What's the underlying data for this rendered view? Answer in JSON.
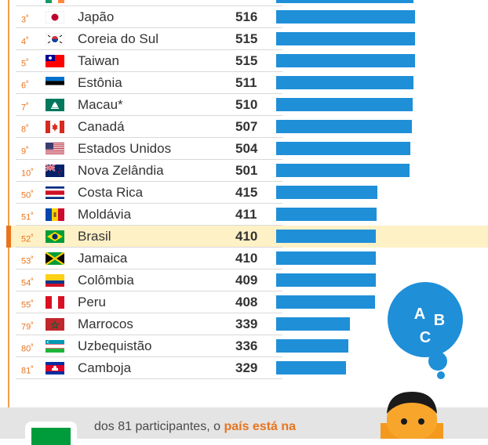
{
  "chart_data": {
    "type": "bar",
    "highlight": "Brasil",
    "rows": [
      {
        "rank": "3",
        "country": "Japão",
        "value": 516,
        "flag": "japan-flag"
      },
      {
        "rank": "4",
        "country": "Coreia do Sul",
        "value": 515,
        "flag": "south-korea-flag"
      },
      {
        "rank": "5",
        "country": "Taiwan",
        "value": 515,
        "flag": "taiwan-flag"
      },
      {
        "rank": "6",
        "country": "Estônia",
        "value": 511,
        "flag": "estonia-flag"
      },
      {
        "rank": "7",
        "country": "Macau*",
        "value": 510,
        "flag": "macau-flag"
      },
      {
        "rank": "8",
        "country": "Canadá",
        "value": 507,
        "flag": "canada-flag"
      },
      {
        "rank": "9",
        "country": "Estados Unidos",
        "value": 504,
        "flag": "usa-flag"
      },
      {
        "rank": "10",
        "country": "Nova Zelândia",
        "value": 501,
        "flag": "new-zealand-flag"
      },
      {
        "rank": "50",
        "country": "Costa Rica",
        "value": 415,
        "flag": "costa-rica-flag"
      },
      {
        "rank": "51",
        "country": "Moldávia",
        "value": 411,
        "flag": "moldova-flag"
      },
      {
        "rank": "52",
        "country": "Brasil",
        "value": 410,
        "flag": "brazil-flag"
      },
      {
        "rank": "53",
        "country": "Jamaica",
        "value": 410,
        "flag": "jamaica-flag"
      },
      {
        "rank": "54",
        "country": "Colômbia",
        "value": 409,
        "flag": "colombia-flag"
      },
      {
        "rank": "55",
        "country": "Peru",
        "value": 408,
        "flag": "peru-flag"
      },
      {
        "rank": "79",
        "country": "Marrocos",
        "value": 339,
        "flag": "morocco-flag"
      },
      {
        "rank": "80",
        "country": "Uzbequistão",
        "value": 336,
        "flag": "uzbekistan-flag"
      },
      {
        "rank": "81",
        "country": "Camboja",
        "value": 329,
        "flag": "cambodia-flag"
      }
    ]
  },
  "bubble": {
    "letters": [
      "A",
      "B",
      "C"
    ]
  },
  "footer": {
    "text_a": "dos 81 participantes, o",
    "text_b": "país está na"
  },
  "colors": {
    "accent": "#e8741e",
    "bar": "#1f8fd8",
    "highlight": "#fff1c6"
  }
}
